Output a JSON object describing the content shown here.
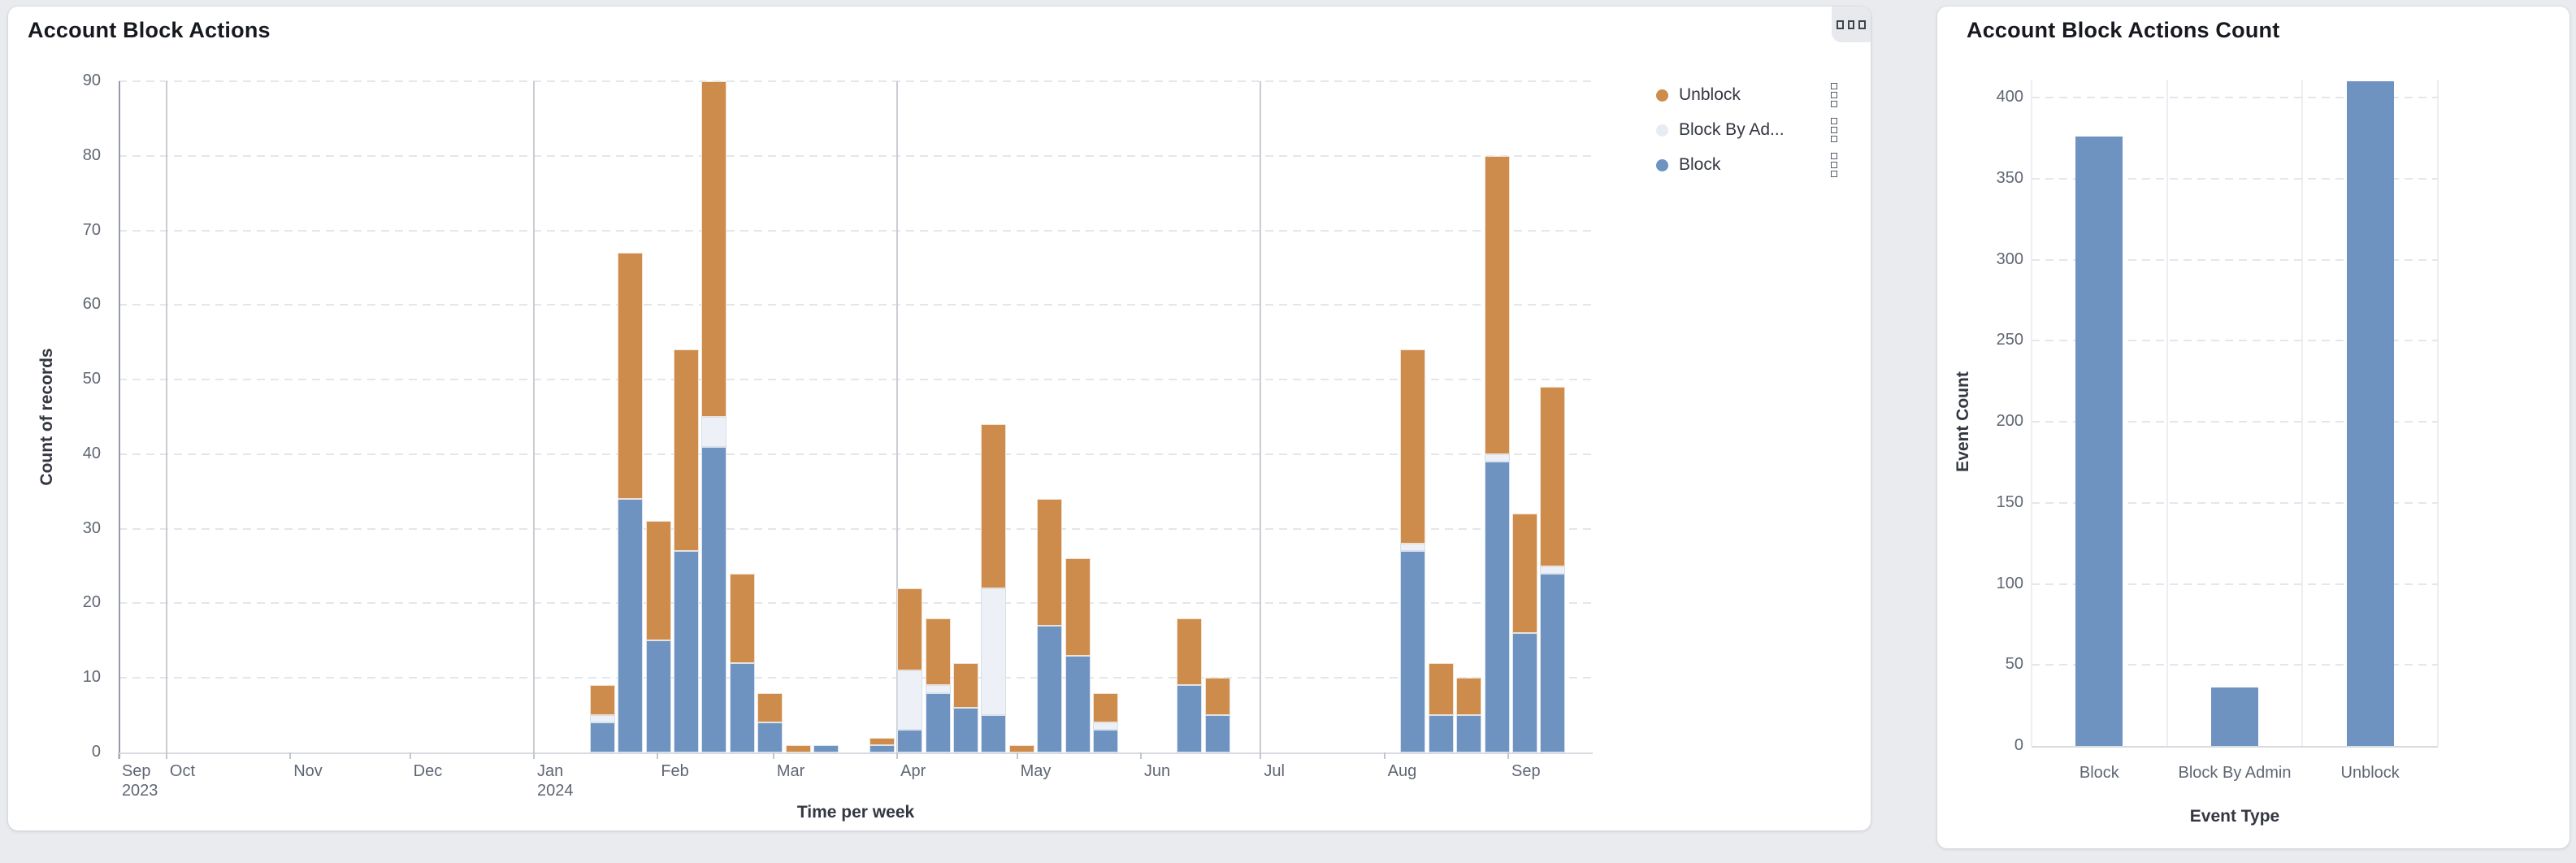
{
  "left_card": {
    "title": "Account Block Actions",
    "menu_button": {
      "icon": "three-squares-menu-icon"
    },
    "legend": [
      {
        "label": "Unblock",
        "series": "Unblock",
        "color": "#CD8C4B"
      },
      {
        "label": "Block By Ad...",
        "series": "Block By Admin",
        "color": "#E7ECF3"
      },
      {
        "label": "Block",
        "series": "Block",
        "color": "#6E93C1"
      }
    ]
  },
  "right_card": {
    "title": "Account Block Actions Count"
  },
  "chart_data": [
    {
      "id": "account-block-actions-weekly",
      "type": "bar",
      "stacked": true,
      "title": "Account Block Actions",
      "xlabel": "Time per week",
      "ylabel": "Count of records",
      "ylim": [
        0,
        90
      ],
      "y_tick_step": 10,
      "grid": "horizontal-dashed",
      "legend_position": "top-right",
      "series_order_bottom_to_top": [
        "Block",
        "Block By Admin",
        "Unblock"
      ],
      "colors": {
        "Block": "#6E93C1",
        "Block By Admin": "#EDF1F7",
        "Unblock": "#CD8C4B"
      },
      "x_axis": {
        "start": "2023-09-19",
        "end": "2024-09-22",
        "month_ticks": [
          {
            "label": "Sep",
            "year": "2023",
            "date": "2023-09-19",
            "quarter_line": false
          },
          {
            "label": "Oct",
            "date": "2023-10-01",
            "quarter_line": true
          },
          {
            "label": "Nov",
            "date": "2023-11-01",
            "quarter_line": false
          },
          {
            "label": "Dec",
            "date": "2023-12-01",
            "quarter_line": false
          },
          {
            "label": "Jan",
            "year": "2024",
            "date": "2024-01-01",
            "quarter_line": true
          },
          {
            "label": "Feb",
            "date": "2024-02-01",
            "quarter_line": false
          },
          {
            "label": "Mar",
            "date": "2024-03-01",
            "quarter_line": false
          },
          {
            "label": "Apr",
            "date": "2024-04-01",
            "quarter_line": true
          },
          {
            "label": "May",
            "date": "2024-05-01",
            "quarter_line": false
          },
          {
            "label": "Jun",
            "date": "2024-06-01",
            "quarter_line": false
          },
          {
            "label": "Jul",
            "date": "2024-07-01",
            "quarter_line": true
          },
          {
            "label": "Aug",
            "date": "2024-08-01",
            "quarter_line": false
          },
          {
            "label": "Sep",
            "date": "2024-09-01",
            "quarter_line": false
          }
        ]
      },
      "weeks": [
        {
          "week_start": "2024-01-15",
          "Block": 4,
          "Block By Admin": 1,
          "Unblock": 4
        },
        {
          "week_start": "2024-01-22",
          "Block": 34,
          "Block By Admin": 0,
          "Unblock": 33
        },
        {
          "week_start": "2024-01-29",
          "Block": 15,
          "Block By Admin": 0,
          "Unblock": 16
        },
        {
          "week_start": "2024-02-05",
          "Block": 27,
          "Block By Admin": 0,
          "Unblock": 27
        },
        {
          "week_start": "2024-02-12",
          "Block": 41,
          "Block By Admin": 4,
          "Unblock": 45
        },
        {
          "week_start": "2024-02-19",
          "Block": 12,
          "Block By Admin": 0,
          "Unblock": 12
        },
        {
          "week_start": "2024-02-26",
          "Block": 4,
          "Block By Admin": 0,
          "Unblock": 4
        },
        {
          "week_start": "2024-03-04",
          "Block": 0,
          "Block By Admin": 0,
          "Unblock": 1
        },
        {
          "week_start": "2024-03-11",
          "Block": 1,
          "Block By Admin": 0,
          "Unblock": 0
        },
        {
          "week_start": "2024-03-25",
          "Block": 1,
          "Block By Admin": 0,
          "Unblock": 1
        },
        {
          "week_start": "2024-04-01",
          "Block": 3,
          "Block By Admin": 8,
          "Unblock": 11
        },
        {
          "week_start": "2024-04-08",
          "Block": 8,
          "Block By Admin": 1,
          "Unblock": 9
        },
        {
          "week_start": "2024-04-15",
          "Block": 6,
          "Block By Admin": 0,
          "Unblock": 6
        },
        {
          "week_start": "2024-04-22",
          "Block": 5,
          "Block By Admin": 17,
          "Unblock": 22
        },
        {
          "week_start": "2024-04-29",
          "Block": 0,
          "Block By Admin": 0,
          "Unblock": 1
        },
        {
          "week_start": "2024-05-06",
          "Block": 17,
          "Block By Admin": 0,
          "Unblock": 17
        },
        {
          "week_start": "2024-05-13",
          "Block": 13,
          "Block By Admin": 0,
          "Unblock": 13
        },
        {
          "week_start": "2024-05-20",
          "Block": 3,
          "Block By Admin": 1,
          "Unblock": 4
        },
        {
          "week_start": "2024-06-10",
          "Block": 9,
          "Block By Admin": 0,
          "Unblock": 9
        },
        {
          "week_start": "2024-06-17",
          "Block": 5,
          "Block By Admin": 0,
          "Unblock": 5
        },
        {
          "week_start": "2024-08-05",
          "Block": 27,
          "Block By Admin": 1,
          "Unblock": 26
        },
        {
          "week_start": "2024-08-12",
          "Block": 5,
          "Block By Admin": 0,
          "Unblock": 7
        },
        {
          "week_start": "2024-08-19",
          "Block": 5,
          "Block By Admin": 0,
          "Unblock": 5
        },
        {
          "week_start": "2024-08-26",
          "Block": 39,
          "Block By Admin": 1,
          "Unblock": 40
        },
        {
          "week_start": "2024-09-02",
          "Block": 16,
          "Block By Admin": 0,
          "Unblock": 16
        },
        {
          "week_start": "2024-09-09",
          "Block": 24,
          "Block By Admin": 1,
          "Unblock": 24
        }
      ]
    },
    {
      "id": "account-block-actions-count",
      "type": "bar",
      "title": "Account Block Actions Count",
      "xlabel": "Event Type",
      "ylabel": "Event Count",
      "ylim": [
        0,
        400
      ],
      "y_tick_step": 50,
      "grid": "horizontal-dashed",
      "categories": [
        "Block",
        "Block By Admin",
        "Unblock"
      ],
      "values": [
        376,
        36,
        410
      ],
      "bar_color": "#6E93C1"
    }
  ]
}
